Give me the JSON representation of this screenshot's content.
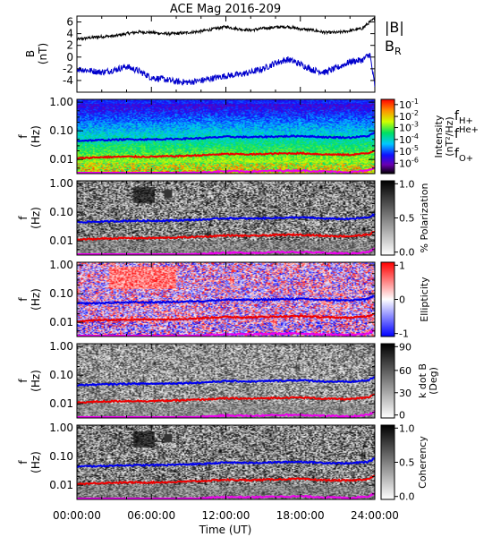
{
  "chart_data": [
    {
      "type": "line",
      "title": "ACE Mag 2016-209",
      "ylabel": "B",
      "yunit": "(nT)",
      "ylim": [
        -6,
        7
      ],
      "yticks": [
        -4,
        -2,
        0,
        2,
        4,
        6
      ],
      "legend_position": "right",
      "series": [
        {
          "name": "|B|",
          "color": "#000000",
          "x_hours": [
            0,
            1,
            2,
            3,
            4,
            5,
            6,
            7,
            8,
            9,
            10,
            11,
            12,
            13,
            14,
            15,
            16,
            17,
            18,
            19,
            20,
            21,
            22,
            23,
            23.6,
            24
          ],
          "values": [
            3.0,
            3.3,
            3.5,
            3.6,
            4.0,
            4.3,
            4.2,
            4.0,
            4.0,
            4.2,
            4.4,
            4.8,
            5.2,
            4.8,
            4.6,
            4.9,
            5.1,
            5.2,
            4.8,
            4.6,
            4.2,
            4.2,
            4.5,
            4.9,
            6.0,
            6.6
          ]
        },
        {
          "name": "B",
          "subscript": "R",
          "color": "#0000cc",
          "x_hours": [
            0,
            1,
            2,
            3,
            4,
            5,
            6,
            7,
            8,
            9,
            10,
            11,
            12,
            13,
            14,
            15,
            16,
            17,
            18,
            19,
            20,
            21,
            22,
            23,
            23.6,
            24
          ],
          "values": [
            -2.0,
            -2.3,
            -2.6,
            -2.2,
            -1.6,
            -2.4,
            -3.5,
            -3.8,
            -4.2,
            -4.3,
            -4.0,
            -3.6,
            -3.2,
            -3.0,
            -2.6,
            -2.0,
            -1.0,
            -0.4,
            -1.2,
            -2.2,
            -2.6,
            -1.8,
            -0.8,
            -0.5,
            0.5,
            -5.0
          ]
        }
      ]
    },
    {
      "type": "heatmap",
      "quantity": "Intensity",
      "ylabel": "f",
      "yunit": "(Hz)",
      "yscale": "log",
      "yticks": [
        "1.00",
        "0.10",
        "0.01"
      ],
      "colorbar": {
        "label": "Intensity",
        "unit": "(nT²/Hz)",
        "scale": "log",
        "tick_bases": [
          "10",
          "10",
          "10",
          "10",
          "10",
          "10"
        ],
        "tick_exponents": [
          "-1",
          "-2",
          "-3",
          "-4",
          "-5",
          "-6"
        ]
      },
      "legend": [
        {
          "symbol": "f",
          "subscript": "H+",
          "color": "#0000cc"
        },
        {
          "symbol": "f",
          "subscript": "He+",
          "color": "#cc0000"
        },
        {
          "symbol": "f",
          "subscript": "O+",
          "color": "#cc00cc"
        }
      ]
    },
    {
      "type": "heatmap",
      "quantity": "% Polarization",
      "ylabel": "f",
      "yunit": "(Hz)",
      "yscale": "log",
      "yticks": [
        "1.00",
        "0.10",
        "0.01"
      ],
      "colorbar": {
        "label": "% Polarization",
        "ticks": [
          "1.0",
          "0.5",
          "0.0"
        ]
      }
    },
    {
      "type": "heatmap",
      "quantity": "Ellipticity",
      "ylabel": "f",
      "yunit": "(Hz)",
      "yscale": "log",
      "yticks": [
        "1.00",
        "0.10",
        "0.01"
      ],
      "colorbar": {
        "label": "Ellipticity",
        "ticks": [
          "1",
          "0",
          "-1"
        ]
      }
    },
    {
      "type": "heatmap",
      "quantity": "k dot B",
      "ylabel": "f",
      "yunit": "(Hz)",
      "yscale": "log",
      "yticks": [
        "1.00",
        "0.10",
        "0.01"
      ],
      "colorbar": {
        "label": "k dot B",
        "unit": "(Deg)",
        "ticks": [
          "90",
          "60",
          "30",
          "0"
        ]
      }
    },
    {
      "type": "heatmap",
      "quantity": "Coherency",
      "ylabel": "f",
      "yunit": "(Hz)",
      "yscale": "log",
      "yticks": [
        "1.00",
        "0.10",
        "0.01"
      ],
      "colorbar": {
        "label": "Coherency",
        "ticks": [
          "1.0",
          "0.5",
          "0.0"
        ]
      }
    }
  ],
  "x_axis": {
    "label": "Time (UT)",
    "ticks": [
      "00:00:00",
      "06:00:00",
      "12:00:00",
      "18:00:00",
      "24:00:00"
    ],
    "range_hours": [
      0,
      24
    ]
  },
  "gyro_lines": {
    "H+": {
      "x_hours": [
        0,
        2,
        4,
        6,
        8,
        10,
        12,
        14,
        16,
        18,
        20,
        22,
        23.5,
        24
      ],
      "f_hz": [
        0.045,
        0.047,
        0.05,
        0.05,
        0.052,
        0.055,
        0.062,
        0.06,
        0.063,
        0.066,
        0.06,
        0.058,
        0.066,
        0.085
      ]
    },
    "He+": {
      "x_hours": [
        0,
        2,
        4,
        6,
        8,
        10,
        12,
        14,
        16,
        18,
        20,
        22,
        23.5,
        24
      ],
      "f_hz": [
        0.011,
        0.012,
        0.0125,
        0.0125,
        0.013,
        0.014,
        0.0155,
        0.015,
        0.016,
        0.0165,
        0.015,
        0.0145,
        0.0165,
        0.021
      ]
    },
    "O+": {
      "x_hours": [
        0,
        2,
        4,
        6,
        8,
        10,
        12,
        14,
        16,
        18,
        20,
        22,
        23.5,
        24
      ],
      "f_hz": [
        0.0029,
        0.003,
        0.0031,
        0.0031,
        0.0033,
        0.0035,
        0.0039,
        0.0038,
        0.004,
        0.0041,
        0.0038,
        0.0036,
        0.0041,
        0.0053
      ]
    }
  }
}
